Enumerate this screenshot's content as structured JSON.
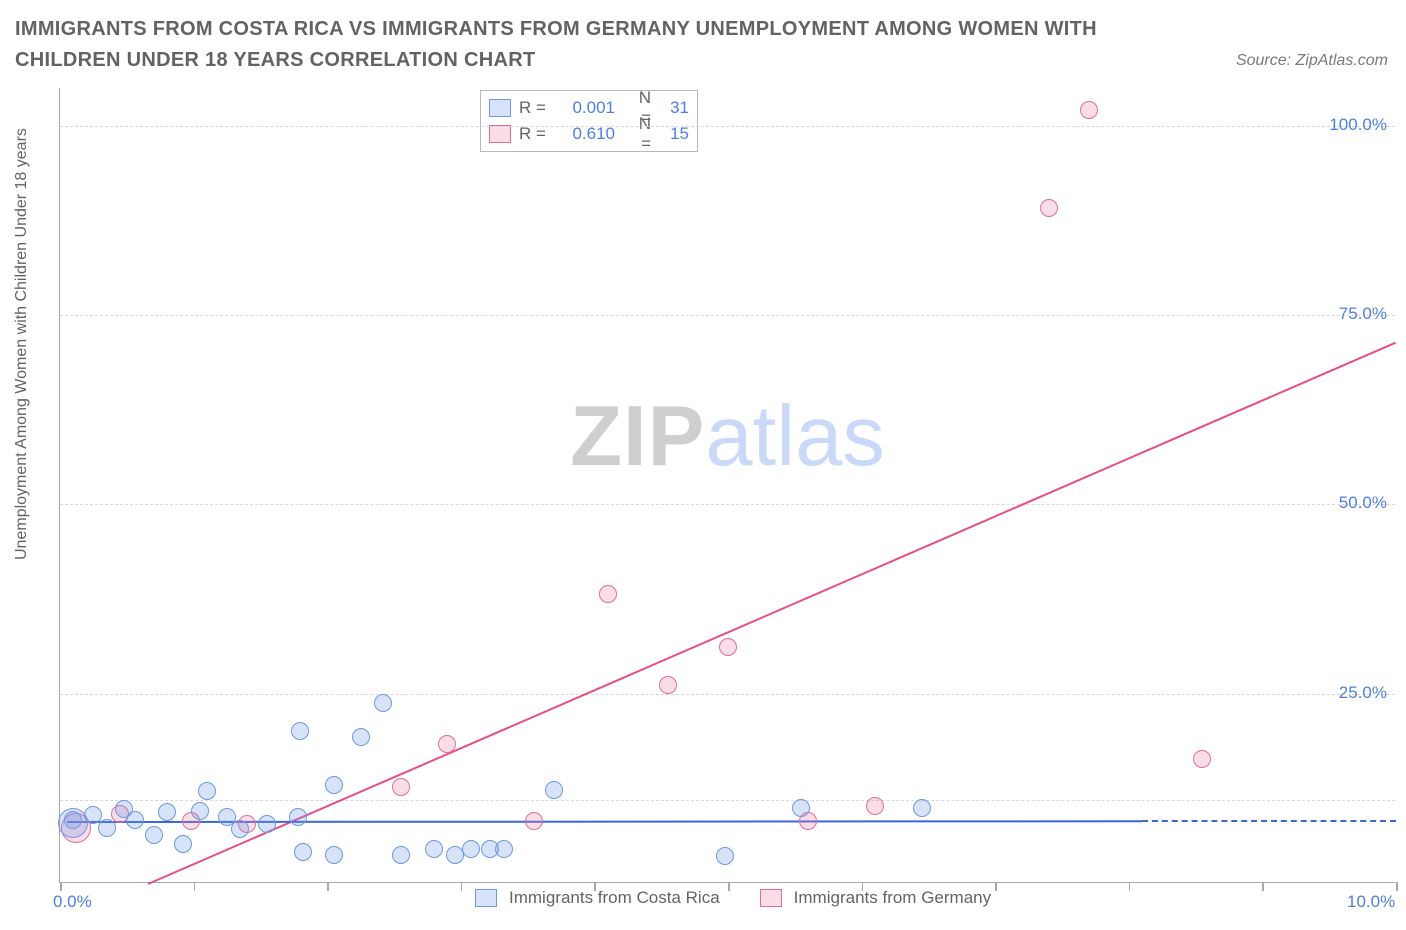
{
  "title": "IMMIGRANTS FROM COSTA RICA VS IMMIGRANTS FROM GERMANY UNEMPLOYMENT AMONG WOMEN WITH CHILDREN UNDER 18 YEARS CORRELATION CHART",
  "source": "Source: ZipAtlas.com",
  "y_axis_label": "Unemployment Among Women with Children Under 18 years",
  "watermark": {
    "zip": "ZIP",
    "atlas": "atlas"
  },
  "colors": {
    "title": "#636363",
    "axis": "#a7a7a7",
    "grid": "#d9d9d9",
    "tick_label": "#4f7fe0",
    "series_a_fill": "rgba(113,156,235,0.28)",
    "series_a_stroke": "#6f98e0",
    "series_b_fill": "rgba(234,120,158,0.25)",
    "series_b_stroke": "#e06f98",
    "trend_a_solid": "#3a66d6",
    "trend_b_solid": "#e84e86"
  },
  "chart": {
    "type": "scatter",
    "xlim": [
      0,
      10
    ],
    "ylim": [
      0,
      105
    ],
    "x_ticks": [
      0,
      1,
      2,
      3,
      4,
      5,
      6,
      7,
      8,
      9,
      10
    ],
    "x_tick_labels": {
      "0": "0.0%",
      "10": "10.0%"
    },
    "y_ticks": [
      25,
      50,
      75,
      100
    ],
    "y_tick_labels": {
      "25": "25.0%",
      "50": "50.0%",
      "75": "75.0%",
      "100": "100.0%"
    },
    "grid_y": [
      11,
      25,
      50,
      75,
      100
    ],
    "marker_radius": 9,
    "marker_radius_big": 15
  },
  "legend_top": {
    "rows": [
      {
        "swatch": "a",
        "r_label": "R =",
        "r_val": "0.001",
        "n_label": "N =",
        "n_val": "31"
      },
      {
        "swatch": "b",
        "r_label": "R =",
        "r_val": "0.610",
        "n_label": "N =",
        "n_val": "15"
      }
    ]
  },
  "legend_bottom": {
    "items": [
      {
        "swatch": "a",
        "label": "Immigrants from Costa Rica"
      },
      {
        "swatch": "b",
        "label": "Immigrants from Germany"
      }
    ]
  },
  "series_a": {
    "trend": {
      "x1": 0.05,
      "y1": 8.2,
      "x2": 8.1,
      "y2": 8.3,
      "dash_from_x": 8.1,
      "dash_to_x": 10.0,
      "dash_y": 8.3
    },
    "points": [
      {
        "x": 0.1,
        "y": 7.8,
        "r": 15
      },
      {
        "x": 0.1,
        "y": 8.2
      },
      {
        "x": 0.25,
        "y": 8.8
      },
      {
        "x": 0.35,
        "y": 7.2
      },
      {
        "x": 0.48,
        "y": 9.6
      },
      {
        "x": 0.56,
        "y": 8.2
      },
      {
        "x": 0.7,
        "y": 6.2
      },
      {
        "x": 0.8,
        "y": 9.2
      },
      {
        "x": 0.92,
        "y": 5.0
      },
      {
        "x": 1.05,
        "y": 9.4
      },
      {
        "x": 1.1,
        "y": 12.0
      },
      {
        "x": 1.25,
        "y": 8.6
      },
      {
        "x": 1.35,
        "y": 7.0
      },
      {
        "x": 1.55,
        "y": 7.6
      },
      {
        "x": 1.8,
        "y": 20.0
      },
      {
        "x": 1.78,
        "y": 8.6
      },
      {
        "x": 1.82,
        "y": 4.0
      },
      {
        "x": 2.05,
        "y": 12.8
      },
      {
        "x": 2.05,
        "y": 3.6
      },
      {
        "x": 2.25,
        "y": 19.2
      },
      {
        "x": 2.42,
        "y": 23.6
      },
      {
        "x": 2.55,
        "y": 3.6
      },
      {
        "x": 2.8,
        "y": 4.4
      },
      {
        "x": 2.96,
        "y": 3.6
      },
      {
        "x": 3.08,
        "y": 4.4
      },
      {
        "x": 3.22,
        "y": 4.4
      },
      {
        "x": 3.32,
        "y": 4.4
      },
      {
        "x": 3.7,
        "y": 12.2
      },
      {
        "x": 4.98,
        "y": 3.4
      },
      {
        "x": 5.55,
        "y": 9.8
      },
      {
        "x": 6.45,
        "y": 9.8
      }
    ]
  },
  "series_b": {
    "trend": {
      "x1": 0.4,
      "y1": -2.0,
      "x2": 10.0,
      "y2": 71.5
    },
    "points": [
      {
        "x": 0.12,
        "y": 7.2,
        "r": 15
      },
      {
        "x": 0.45,
        "y": 9.0
      },
      {
        "x": 0.98,
        "y": 8.0
      },
      {
        "x": 1.4,
        "y": 7.6
      },
      {
        "x": 2.55,
        "y": 12.6
      },
      {
        "x": 2.9,
        "y": 18.2
      },
      {
        "x": 3.55,
        "y": 8.0
      },
      {
        "x": 4.1,
        "y": 38.0
      },
      {
        "x": 4.55,
        "y": 26.0
      },
      {
        "x": 5.0,
        "y": 31.0
      },
      {
        "x": 5.6,
        "y": 8.0
      },
      {
        "x": 6.1,
        "y": 10.0
      },
      {
        "x": 7.4,
        "y": 89.0
      },
      {
        "x": 7.7,
        "y": 102.0
      },
      {
        "x": 8.55,
        "y": 16.2
      }
    ]
  }
}
